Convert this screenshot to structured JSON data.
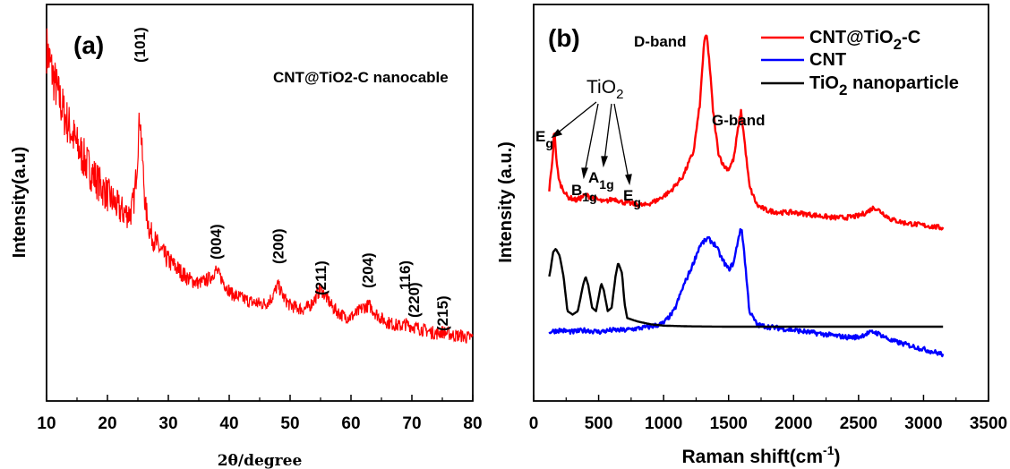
{
  "chart_data": [
    {
      "type": "line",
      "panel_label": "(a)",
      "xlabel": "2θ/degree",
      "ylabel": "Intensity(a.u)",
      "xlim": [
        10,
        80
      ],
      "x_ticks": [
        "10",
        "20",
        "30",
        "40",
        "50",
        "60",
        "70",
        "80"
      ],
      "annotation": "CNT@TiO2-C nanocable",
      "peak_labels": [
        {
          "text": "(101)",
          "x": 25.3
        },
        {
          "text": "(004)",
          "x": 37.8
        },
        {
          "text": "(200)",
          "x": 48.0
        },
        {
          "text": "(211)",
          "x": 55.0
        },
        {
          "text": "(204)",
          "x": 62.7
        },
        {
          "text": "116)",
          "x": 68.8
        },
        {
          "text": "(220)",
          "x": 70.3
        },
        {
          "text": "(215)",
          "x": 75.0
        }
      ],
      "series": [
        {
          "color": "#ff0000",
          "points": [
            [
              10,
              0.92
            ],
            [
              11,
              0.85
            ],
            [
              12,
              0.79
            ],
            [
              13,
              0.74
            ],
            [
              14,
              0.7
            ],
            [
              15,
              0.66
            ],
            [
              16,
              0.63
            ],
            [
              17,
              0.6
            ],
            [
              18,
              0.575
            ],
            [
              19,
              0.55
            ],
            [
              20,
              0.53
            ],
            [
              21,
              0.51
            ],
            [
              22,
              0.49
            ],
            [
              23,
              0.48
            ],
            [
              23.8,
              0.48
            ],
            [
              24.4,
              0.52
            ],
            [
              24.9,
              0.62
            ],
            [
              25.3,
              0.75
            ],
            [
              25.7,
              0.64
            ],
            [
              26.2,
              0.5
            ],
            [
              27,
              0.43
            ],
            [
              28,
              0.4
            ],
            [
              29,
              0.375
            ],
            [
              30,
              0.355
            ],
            [
              31,
              0.34
            ],
            [
              32,
              0.325
            ],
            [
              33,
              0.31
            ],
            [
              34,
              0.3
            ],
            [
              35,
              0.295
            ],
            [
              36,
              0.3
            ],
            [
              37,
              0.31
            ],
            [
              37.8,
              0.33
            ],
            [
              38.6,
              0.31
            ],
            [
              39.5,
              0.285
            ],
            [
              40.5,
              0.265
            ],
            [
              42,
              0.255
            ],
            [
              43.5,
              0.245
            ],
            [
              45,
              0.24
            ],
            [
              46,
              0.24
            ],
            [
              47,
              0.255
            ],
            [
              48,
              0.29
            ],
            [
              49,
              0.255
            ],
            [
              50,
              0.235
            ],
            [
              51,
              0.23
            ],
            [
              52,
              0.225
            ],
            [
              53,
              0.23
            ],
            [
              54,
              0.25
            ],
            [
              55,
              0.28
            ],
            [
              56,
              0.255
            ],
            [
              57,
              0.23
            ],
            [
              58,
              0.215
            ],
            [
              59,
              0.205
            ],
            [
              60,
              0.205
            ],
            [
              61,
              0.215
            ],
            [
              62,
              0.23
            ],
            [
              63,
              0.235
            ],
            [
              64,
              0.215
            ],
            [
              65,
              0.2
            ],
            [
              66,
              0.19
            ],
            [
              67,
              0.185
            ],
            [
              68,
              0.18
            ],
            [
              69,
              0.185
            ],
            [
              70,
              0.18
            ],
            [
              71,
              0.175
            ],
            [
              72,
              0.17
            ],
            [
              73,
              0.165
            ],
            [
              74,
              0.16
            ],
            [
              75,
              0.165
            ],
            [
              76,
              0.16
            ],
            [
              77,
              0.155
            ],
            [
              78,
              0.155
            ],
            [
              79,
              0.15
            ],
            [
              80,
              0.15
            ]
          ]
        }
      ]
    },
    {
      "type": "line",
      "panel_label": "(b)",
      "xlabel": "Raman shift",
      "xlabel_unit": "(cm",
      "xlabel_exp": "-1",
      "xlabel_close": ")",
      "ylabel": "Intensity (a.u.)",
      "xlim": [
        0,
        3500
      ],
      "x_ticks": [
        "0",
        "500",
        "1000",
        "1500",
        "2000",
        "2500",
        "3000",
        "3500"
      ],
      "annotations": {
        "d_band": "D-band",
        "g_band": "G-band",
        "tio2": "TiO",
        "tio2_sub": "2",
        "eg_left": "E",
        "eg_left_sub": "g",
        "b1g": "B",
        "b1g_sub": "1g",
        "a1g": "A",
        "a1g_sub": "1g",
        "eg_right": "E",
        "eg_right_sub": "g"
      },
      "series": [
        {
          "name": "CNT@TiO2-C",
          "legend_parts": [
            "CNT@TiO",
            "2",
            "-C"
          ],
          "color": "#ff0000",
          "points": [
            [
              120,
              0.55
            ],
            [
              145,
              0.64
            ],
            [
              160,
              0.73
            ],
            [
              175,
              0.63
            ],
            [
              200,
              0.57
            ],
            [
              260,
              0.53
            ],
            [
              330,
              0.52
            ],
            [
              400,
              0.535
            ],
            [
              470,
              0.525
            ],
            [
              540,
              0.515
            ],
            [
              620,
              0.525
            ],
            [
              680,
              0.515
            ],
            [
              760,
              0.51
            ],
            [
              850,
              0.505
            ],
            [
              950,
              0.52
            ],
            [
              1050,
              0.545
            ],
            [
              1150,
              0.59
            ],
            [
              1230,
              0.66
            ],
            [
              1280,
              0.8
            ],
            [
              1310,
              0.97
            ],
            [
              1330,
              1.0
            ],
            [
              1350,
              0.93
            ],
            [
              1380,
              0.78
            ],
            [
              1420,
              0.66
            ],
            [
              1460,
              0.62
            ],
            [
              1500,
              0.61
            ],
            [
              1540,
              0.64
            ],
            [
              1570,
              0.72
            ],
            [
              1595,
              0.78
            ],
            [
              1620,
              0.7
            ],
            [
              1660,
              0.56
            ],
            [
              1720,
              0.505
            ],
            [
              1800,
              0.49
            ],
            [
              1900,
              0.485
            ],
            [
              2000,
              0.485
            ],
            [
              2100,
              0.48
            ],
            [
              2200,
              0.475
            ],
            [
              2300,
              0.47
            ],
            [
              2400,
              0.47
            ],
            [
              2500,
              0.475
            ],
            [
              2560,
              0.485
            ],
            [
              2620,
              0.5
            ],
            [
              2680,
              0.485
            ],
            [
              2750,
              0.465
            ],
            [
              2850,
              0.455
            ],
            [
              2950,
              0.45
            ],
            [
              3050,
              0.445
            ],
            [
              3150,
              0.44
            ]
          ]
        },
        {
          "name": "CNT",
          "legend_parts": [
            "CNT",
            "",
            ""
          ],
          "color": "#0000ff",
          "points": [
            [
              120,
              0.14
            ],
            [
              200,
              0.145
            ],
            [
              300,
              0.14
            ],
            [
              400,
              0.145
            ],
            [
              500,
              0.14
            ],
            [
              600,
              0.145
            ],
            [
              700,
              0.145
            ],
            [
              800,
              0.15
            ],
            [
              900,
              0.155
            ],
            [
              1000,
              0.165
            ],
            [
              1080,
              0.2
            ],
            [
              1150,
              0.27
            ],
            [
              1220,
              0.33
            ],
            [
              1280,
              0.39
            ],
            [
              1340,
              0.41
            ],
            [
              1400,
              0.39
            ],
            [
              1450,
              0.35
            ],
            [
              1500,
              0.32
            ],
            [
              1540,
              0.34
            ],
            [
              1580,
              0.42
            ],
            [
              1600,
              0.44
            ],
            [
              1620,
              0.37
            ],
            [
              1660,
              0.2
            ],
            [
              1720,
              0.16
            ],
            [
              1800,
              0.155
            ],
            [
              1900,
              0.15
            ],
            [
              2000,
              0.145
            ],
            [
              2100,
              0.14
            ],
            [
              2200,
              0.135
            ],
            [
              2300,
              0.13
            ],
            [
              2400,
              0.125
            ],
            [
              2500,
              0.125
            ],
            [
              2560,
              0.135
            ],
            [
              2620,
              0.14
            ],
            [
              2680,
              0.13
            ],
            [
              2750,
              0.115
            ],
            [
              2850,
              0.105
            ],
            [
              2950,
              0.095
            ],
            [
              3050,
              0.085
            ],
            [
              3150,
              0.075
            ]
          ]
        },
        {
          "name": "TiO2 nanoparticle",
          "legend_parts": [
            "TiO",
            "2",
            " nanoparticle"
          ],
          "color": "#000000",
          "points": [
            [
              120,
              0.3
            ],
            [
              130,
              0.32
            ],
            [
              150,
              0.37
            ],
            [
              170,
              0.38
            ],
            [
              200,
              0.36
            ],
            [
              230,
              0.3
            ],
            [
              260,
              0.2
            ],
            [
              300,
              0.19
            ],
            [
              340,
              0.2
            ],
            [
              380,
              0.275
            ],
            [
              400,
              0.3
            ],
            [
              420,
              0.275
            ],
            [
              450,
              0.21
            ],
            [
              480,
              0.2
            ],
            [
              500,
              0.24
            ],
            [
              520,
              0.28
            ],
            [
              540,
              0.26
            ],
            [
              570,
              0.2
            ],
            [
              600,
              0.21
            ],
            [
              630,
              0.3
            ],
            [
              650,
              0.34
            ],
            [
              680,
              0.31
            ],
            [
              700,
              0.22
            ],
            [
              720,
              0.18
            ],
            [
              760,
              0.175
            ],
            [
              800,
              0.17
            ],
            [
              900,
              0.162
            ],
            [
              1000,
              0.158
            ],
            [
              1200,
              0.156
            ],
            [
              1500,
              0.155
            ],
            [
              2000,
              0.155
            ],
            [
              2500,
              0.155
            ],
            [
              3000,
              0.155
            ],
            [
              3150,
              0.155
            ]
          ]
        }
      ]
    }
  ]
}
